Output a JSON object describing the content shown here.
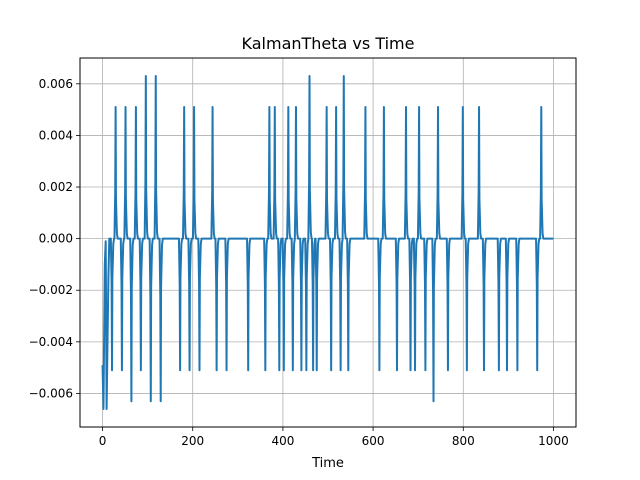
{
  "chart_data": {
    "type": "line",
    "title": "KalmanTheta vs Time",
    "xlabel": "Time",
    "ylabel": "",
    "xlim": [
      -50,
      1050
    ],
    "ylim": [
      -0.0073,
      0.007
    ],
    "xticks": [
      0,
      200,
      400,
      600,
      800,
      1000
    ],
    "xtick_labels": [
      "0",
      "200",
      "400",
      "600",
      "800",
      "1000"
    ],
    "yticks": [
      -0.006,
      -0.004,
      -0.002,
      0.0,
      0.002,
      0.004,
      0.006
    ],
    "ytick_labels": [
      "−0.006",
      "−0.004",
      "−0.002",
      "0.000",
      "0.002",
      "0.004",
      "0.006"
    ],
    "grid": true,
    "line_color": "#1f77b4",
    "series": [
      {
        "name": "",
        "baseline": 0.0,
        "initial": [
          {
            "x": 0,
            "y": -0.0049
          },
          {
            "x": 2,
            "y": -0.0066
          },
          {
            "x": 5,
            "y": -0.001
          },
          {
            "x": 7,
            "y": -0.0001
          },
          {
            "x": 9,
            "y": -0.0066
          },
          {
            "x": 13,
            "y": -0.0015
          },
          {
            "x": 15,
            "y": 0.0
          }
        ],
        "spikes": [
          {
            "x": 21,
            "y": -0.0051
          },
          {
            "x": 29,
            "y": 0.0051
          },
          {
            "x": 43,
            "y": -0.0051
          },
          {
            "x": 51,
            "y": 0.0051
          },
          {
            "x": 64,
            "y": -0.0063
          },
          {
            "x": 74,
            "y": 0.0051
          },
          {
            "x": 85,
            "y": -0.0051
          },
          {
            "x": 96,
            "y": 0.0063
          },
          {
            "x": 107,
            "y": -0.0063
          },
          {
            "x": 118,
            "y": 0.0063
          },
          {
            "x": 129,
            "y": -0.0063
          },
          {
            "x": 172,
            "y": -0.0051
          },
          {
            "x": 181,
            "y": 0.0051
          },
          {
            "x": 193,
            "y": -0.0051
          },
          {
            "x": 203,
            "y": 0.0051
          },
          {
            "x": 215,
            "y": -0.0051
          },
          {
            "x": 244,
            "y": 0.0051
          },
          {
            "x": 253,
            "y": -0.0051
          },
          {
            "x": 275,
            "y": -0.0051
          },
          {
            "x": 323,
            "y": -0.0051
          },
          {
            "x": 361,
            "y": -0.0051
          },
          {
            "x": 370,
            "y": 0.0051
          },
          {
            "x": 382,
            "y": 0.0051
          },
          {
            "x": 392,
            "y": -0.0051
          },
          {
            "x": 402,
            "y": -0.0051
          },
          {
            "x": 412,
            "y": 0.0051
          },
          {
            "x": 422,
            "y": -0.0051
          },
          {
            "x": 429,
            "y": 0.0051
          },
          {
            "x": 441,
            "y": -0.0051
          },
          {
            "x": 452,
            "y": -0.0051
          },
          {
            "x": 459,
            "y": 0.0063
          },
          {
            "x": 467,
            "y": -0.0051
          },
          {
            "x": 475,
            "y": -0.0051
          },
          {
            "x": 497,
            "y": 0.0051
          },
          {
            "x": 507,
            "y": -0.0051
          },
          {
            "x": 518,
            "y": 0.0051
          },
          {
            "x": 528,
            "y": -0.0051
          },
          {
            "x": 535,
            "y": 0.0063
          },
          {
            "x": 545,
            "y": -0.0051
          },
          {
            "x": 583,
            "y": 0.0051
          },
          {
            "x": 614,
            "y": -0.0051
          },
          {
            "x": 624,
            "y": 0.0051
          },
          {
            "x": 653,
            "y": -0.0051
          },
          {
            "x": 673,
            "y": 0.0051
          },
          {
            "x": 683,
            "y": -0.0051
          },
          {
            "x": 693,
            "y": -0.0051
          },
          {
            "x": 702,
            "y": 0.0051
          },
          {
            "x": 716,
            "y": -0.0051
          },
          {
            "x": 734,
            "y": -0.0063
          },
          {
            "x": 744,
            "y": 0.0051
          },
          {
            "x": 766,
            "y": -0.0051
          },
          {
            "x": 799,
            "y": 0.0051
          },
          {
            "x": 808,
            "y": -0.0051
          },
          {
            "x": 835,
            "y": 0.0051
          },
          {
            "x": 846,
            "y": -0.0051
          },
          {
            "x": 879,
            "y": -0.0051
          },
          {
            "x": 897,
            "y": -0.0051
          },
          {
            "x": 920,
            "y": -0.0051
          },
          {
            "x": 964,
            "y": -0.0051
          },
          {
            "x": 973,
            "y": 0.0051
          }
        ],
        "x_end": 1000
      }
    ]
  }
}
